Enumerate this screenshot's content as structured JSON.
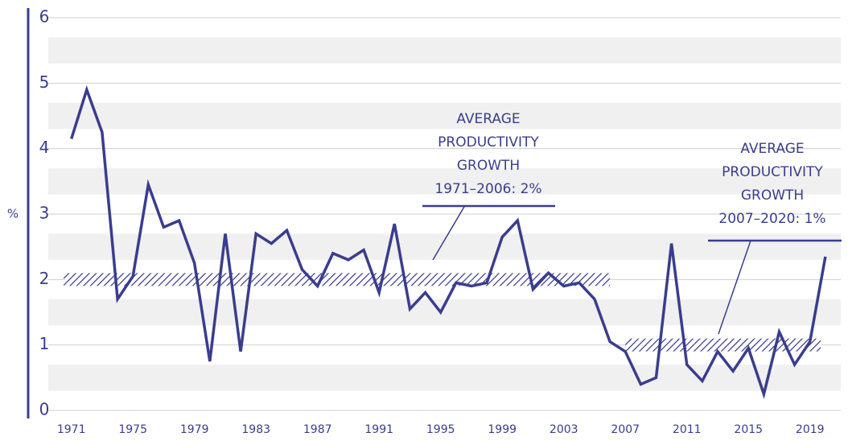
{
  "chart_data": {
    "type": "line",
    "y_label": "%",
    "x": [
      1971,
      1972,
      1973,
      1974,
      1975,
      1976,
      1977,
      1978,
      1979,
      1980,
      1981,
      1982,
      1983,
      1984,
      1985,
      1986,
      1987,
      1988,
      1989,
      1990,
      1991,
      1992,
      1993,
      1994,
      1995,
      1996,
      1997,
      1998,
      1999,
      2000,
      2001,
      2002,
      2003,
      2004,
      2005,
      2006,
      2007,
      2008,
      2009,
      2010,
      2011,
      2012,
      2013,
      2014,
      2015,
      2016,
      2017,
      2018,
      2019,
      2020
    ],
    "series": [
      {
        "name": "Productivity growth",
        "color": "#3a3d8e",
        "values": [
          4.15,
          4.9,
          4.25,
          1.7,
          2.05,
          3.45,
          2.8,
          2.9,
          2.25,
          0.75,
          2.7,
          0.9,
          2.7,
          2.55,
          2.75,
          2.15,
          1.9,
          2.4,
          2.3,
          2.45,
          1.8,
          2.85,
          1.55,
          1.8,
          1.5,
          1.95,
          1.9,
          1.95,
          2.65,
          2.9,
          1.85,
          2.1,
          1.9,
          1.95,
          1.7,
          1.05,
          0.9,
          0.4,
          0.5,
          2.55,
          0.7,
          0.45,
          0.9,
          0.6,
          0.95,
          0.25,
          1.2,
          0.7,
          1.05,
          2.35
        ]
      }
    ],
    "xlim": [
      1969.5,
      2021
    ],
    "xticks": [
      1971,
      1975,
      1979,
      1983,
      1987,
      1991,
      1995,
      1999,
      2003,
      2007,
      2011,
      2015,
      2019
    ],
    "ylim": [
      0,
      6
    ],
    "yticks": [
      0,
      1,
      2,
      3,
      4,
      5,
      6
    ],
    "grid": true,
    "averages": [
      {
        "value": 2,
        "x": [
          1970.5,
          2006
        ],
        "lines": [
          "AVERAGE",
          "PRODUCTIVITY",
          "GROWTH",
          "1971–2006: 2%"
        ]
      },
      {
        "value": 1,
        "x": [
          2007,
          2019.7
        ],
        "lines": [
          "AVERAGE",
          "PRODUCTIVITY",
          "GROWTH",
          "2007–2020: 1%"
        ]
      }
    ]
  }
}
